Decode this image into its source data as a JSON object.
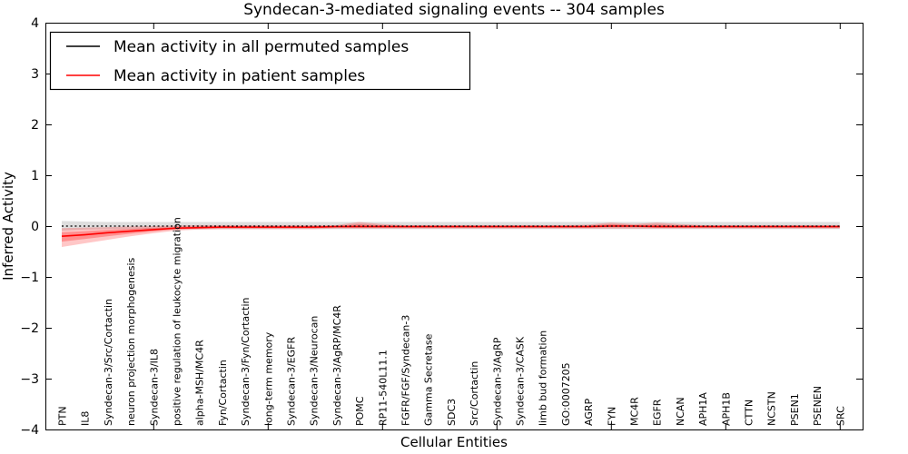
{
  "chart_data": {
    "type": "line",
    "title": "Syndecan-3-mediated signaling events -- 304 samples",
    "xlabel": "Cellular Entities",
    "ylabel": "Inferred Activity",
    "ylim": [
      -4,
      4
    ],
    "yticks": [
      4,
      3,
      2,
      1,
      0,
      -1,
      -2,
      -3,
      -4
    ],
    "xticks_numeric": [
      5,
      10,
      15,
      20,
      25,
      30,
      35
    ],
    "grid": false,
    "legend_position": "upper left",
    "colors": {
      "permuted_line": "#000000",
      "permuted_band": "#b0b0b0",
      "patient_line": "#ff0000",
      "patient_band": "#ff0000"
    },
    "categories": [
      "PTN",
      "IL8",
      "Syndecan-3/Src/Cortactin",
      "neuron projection morphogenesis",
      "Syndecan-3/IL8",
      "positive regulation of leukocyte migration",
      "alpha-MSH/MC4R",
      "Fyn/Cortactin",
      "Syndecan-3/Fyn/Cortactin",
      "long-term memory",
      "Syndecan-3/EGFR",
      "Syndecan-3/Neurocan",
      "Syndecan-3/AgRP/MC4R",
      "POMC",
      "RP11-540L11.1",
      "FGFR/FGF/Syndecan-3",
      "Gamma Secretase",
      "SDC3",
      "Src/Cortactin",
      "Syndecan-3/AgRP",
      "Syndecan-3/CASK",
      "limb bud formation",
      "GO:0007205",
      "AGRP",
      "FYN",
      "MC4R",
      "EGFR",
      "NCAN",
      "APH1A",
      "APH1B",
      "CTTN",
      "NCSTN",
      "PSEN1",
      "PSENEN",
      "SRC"
    ],
    "series": [
      {
        "name": "Mean activity in all permuted samples",
        "values": [
          0,
          0,
          0,
          0,
          0,
          0,
          0,
          0,
          0,
          0,
          0,
          0,
          0,
          0,
          0,
          0,
          0,
          0,
          0,
          0,
          0,
          0,
          0,
          0,
          0,
          0,
          0,
          0,
          0,
          0,
          0,
          0,
          0,
          0,
          0
        ],
        "band_lo": [
          -0.09,
          -0.07,
          -0.06,
          -0.06,
          -0.06,
          -0.06,
          -0.06,
          -0.06,
          -0.06,
          -0.06,
          -0.06,
          -0.06,
          -0.06,
          -0.06,
          -0.06,
          -0.06,
          -0.06,
          -0.06,
          -0.06,
          -0.06,
          -0.06,
          -0.06,
          -0.06,
          -0.06,
          -0.06,
          -0.06,
          -0.06,
          -0.06,
          -0.06,
          -0.06,
          -0.06,
          -0.06,
          -0.06,
          -0.06,
          -0.06
        ],
        "band_hi": [
          0.1,
          0.09,
          0.08,
          0.08,
          0.08,
          0.08,
          0.08,
          0.08,
          0.08,
          0.08,
          0.08,
          0.08,
          0.08,
          0.08,
          0.08,
          0.08,
          0.08,
          0.08,
          0.08,
          0.08,
          0.08,
          0.08,
          0.08,
          0.08,
          0.08,
          0.08,
          0.08,
          0.08,
          0.08,
          0.08,
          0.08,
          0.08,
          0.08,
          0.08,
          0.08
        ]
      },
      {
        "name": "Mean activity in patient samples",
        "values": [
          -0.2,
          -0.17,
          -0.13,
          -0.1,
          -0.07,
          -0.04,
          -0.03,
          -0.02,
          -0.02,
          -0.02,
          -0.02,
          -0.02,
          -0.01,
          -0.01,
          -0.01,
          -0.01,
          -0.01,
          -0.01,
          -0.01,
          -0.01,
          -0.01,
          -0.01,
          -0.01,
          -0.01,
          0.0,
          0.0,
          -0.01,
          -0.01,
          -0.01,
          -0.01,
          -0.01,
          -0.01,
          -0.01,
          -0.01,
          -0.01
        ],
        "band_lo": [
          -0.41,
          -0.34,
          -0.27,
          -0.2,
          -0.14,
          -0.09,
          -0.07,
          -0.06,
          -0.06,
          -0.06,
          -0.06,
          -0.06,
          -0.05,
          -0.05,
          -0.05,
          -0.05,
          -0.05,
          -0.05,
          -0.05,
          -0.05,
          -0.05,
          -0.05,
          -0.05,
          -0.05,
          -0.05,
          -0.05,
          -0.05,
          -0.05,
          -0.05,
          -0.05,
          -0.05,
          -0.05,
          -0.05,
          -0.05,
          -0.05
        ],
        "band_hi": [
          -0.04,
          -0.03,
          -0.02,
          -0.01,
          0.0,
          0.01,
          0.02,
          0.02,
          0.02,
          0.02,
          0.02,
          0.02,
          0.02,
          0.08,
          0.04,
          0.02,
          0.02,
          0.02,
          0.02,
          0.02,
          0.02,
          0.02,
          0.02,
          0.03,
          0.07,
          0.04,
          0.07,
          0.04,
          0.02,
          0.02,
          0.02,
          0.02,
          0.02,
          0.02,
          0.02
        ]
      }
    ]
  }
}
